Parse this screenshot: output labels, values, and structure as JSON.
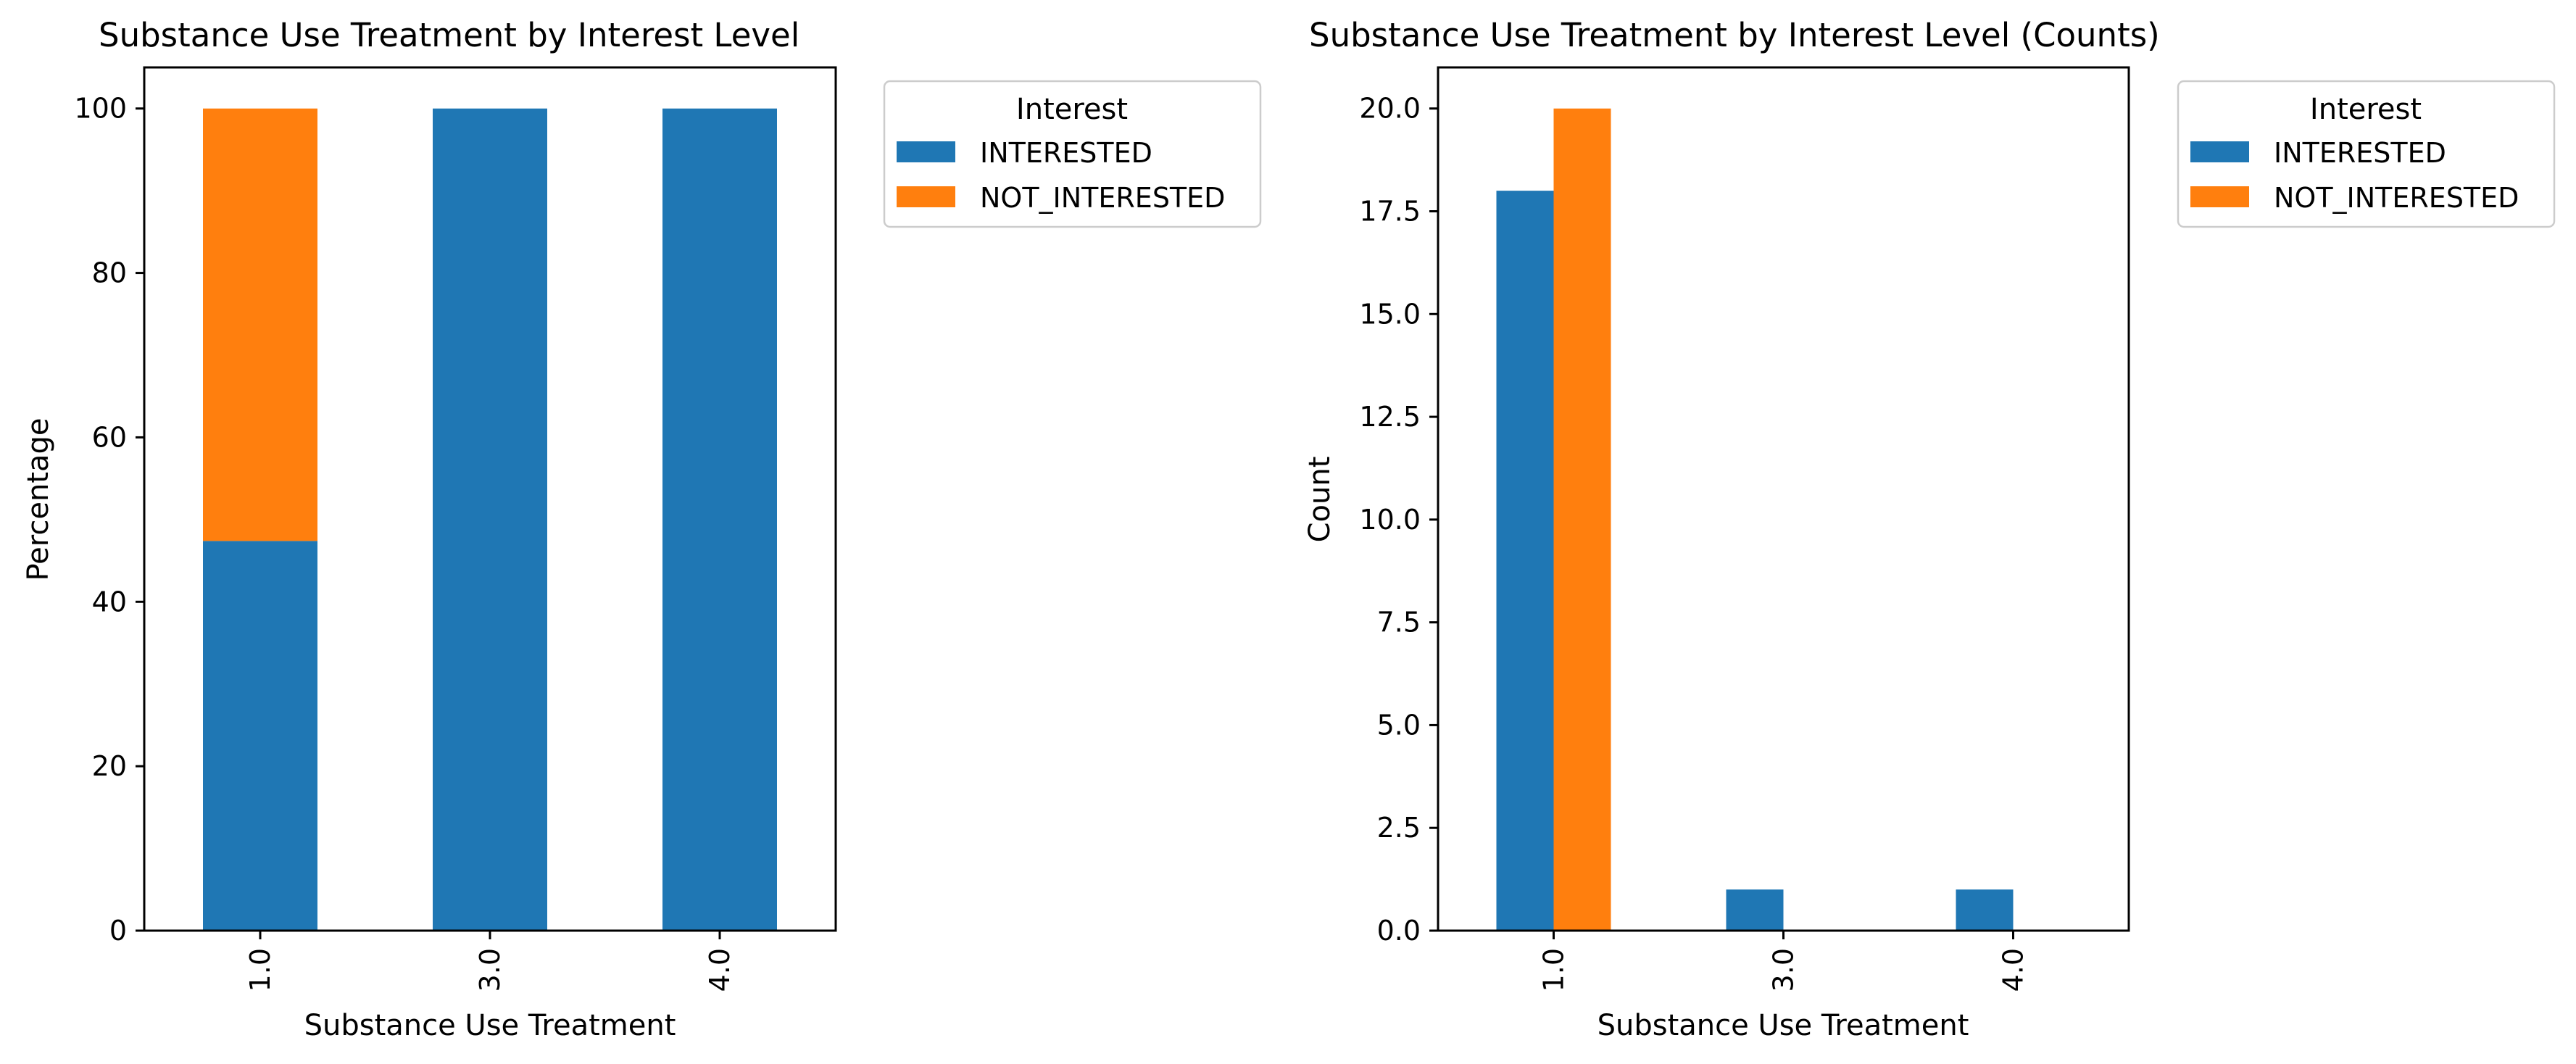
{
  "chart_data": [
    {
      "type": "bar",
      "stacked": true,
      "title": "Substance Use Treatment by Interest Level",
      "xlabel": "Substance Use Treatment",
      "ylabel": "Percentage",
      "categories": [
        "1.0",
        "3.0",
        "4.0"
      ],
      "series": [
        {
          "name": "INTERESTED",
          "values": [
            47.4,
            100,
            100
          ]
        },
        {
          "name": "NOT_INTERESTED",
          "values": [
            52.6,
            0,
            0
          ]
        }
      ],
      "ylim": [
        0,
        105
      ],
      "yticks": [
        "0",
        "20",
        "40",
        "60",
        "80",
        "100"
      ],
      "legend": {
        "title": "Interest",
        "placement": "outside-upper-right"
      },
      "grid": false
    },
    {
      "type": "bar",
      "stacked": false,
      "title": "Substance Use Treatment by Interest Level (Counts)",
      "xlabel": "Substance Use Treatment",
      "ylabel": "Count",
      "categories": [
        "1.0",
        "3.0",
        "4.0"
      ],
      "series": [
        {
          "name": "INTERESTED",
          "values": [
            18,
            1,
            1
          ]
        },
        {
          "name": "NOT_INTERESTED",
          "values": [
            20,
            0,
            0
          ]
        }
      ],
      "ylim": [
        0,
        21
      ],
      "yticks": [
        "0.0",
        "2.5",
        "5.0",
        "7.5",
        "10.0",
        "12.5",
        "15.0",
        "17.5",
        "20.0"
      ],
      "legend": {
        "title": "Interest",
        "placement": "outside-upper-right"
      },
      "grid": false
    }
  ],
  "colors": {
    "INTERESTED": "#1f77b4",
    "NOT_INTERESTED": "#ff7f0e"
  }
}
